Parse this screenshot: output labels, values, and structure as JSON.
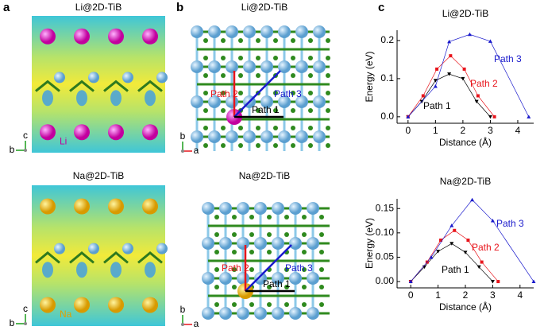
{
  "panel_labels": [
    "a",
    "b",
    "c"
  ],
  "structures": [
    {
      "title": "Li@2D-TiB",
      "ion": "Li"
    },
    {
      "title": "Na@2D-TiB",
      "ion": "Na"
    }
  ],
  "triad_side": [
    "c",
    "b"
  ],
  "triad_top": [
    "b",
    "a"
  ],
  "diffusion_paths": [
    "Path 1",
    "Path 2",
    "Path 3"
  ],
  "chart_data": [
    {
      "type": "line",
      "title": "Li@2D-TiB",
      "xlabel": "Distance (Å)",
      "ylabel": "Energy (eV)",
      "xlim": [
        -0.4,
        4.58
      ],
      "xticks": [
        0,
        1,
        2,
        3,
        4
      ],
      "ylim": [
        -0.017,
        0.227
      ],
      "yticks": [
        {
          "value": 0,
          "label": "0.0"
        },
        0.1,
        0.2
      ],
      "series": [
        {
          "name": "Path 1",
          "color": "#000000",
          "marker": "v",
          "x": [
            0,
            0.5,
            1.0,
            1.5,
            2.0,
            2.5,
            3.0
          ],
          "values": [
            0,
            0.04,
            0.095,
            0.112,
            0.1,
            0.04,
            0
          ]
        },
        {
          "name": "Path 2",
          "color": "#e8141b",
          "marker": "s",
          "x": [
            0,
            0.55,
            1.05,
            1.55,
            2.05,
            2.55,
            3.15
          ],
          "values": [
            0,
            0.055,
            0.125,
            0.16,
            0.125,
            0.055,
            0
          ]
        },
        {
          "name": "Path 3",
          "color": "#1a1acc",
          "marker": "^",
          "x": [
            0,
            1.0,
            1.5,
            2.25,
            3.0,
            4.4
          ],
          "values": [
            0,
            0.08,
            0.197,
            0.216,
            0.198,
            0
          ]
        }
      ]
    },
    {
      "type": "line",
      "title": "Na@2D-TiB",
      "xlabel": "Distance (Å)",
      "ylabel": "Energy (eV)",
      "xlim": [
        -0.5,
        4.5
      ],
      "xticks": [
        0,
        1,
        2,
        3,
        4
      ],
      "ylim": [
        -0.013,
        0.17
      ],
      "yticks": [
        {
          "value": 0,
          "label": "0.00"
        },
        0.05,
        {
          "value": 0.1,
          "label": "0.10"
        },
        0.15
      ],
      "series": [
        {
          "name": "Path 1",
          "color": "#000000",
          "marker": "v",
          "x": [
            0,
            0.5,
            1.0,
            1.5,
            2.0,
            2.5,
            3.0
          ],
          "values": [
            0,
            0.03,
            0.062,
            0.078,
            0.06,
            0.03,
            0
          ]
        },
        {
          "name": "Path 2",
          "color": "#e8141b",
          "marker": "s",
          "x": [
            0,
            0.6,
            1.1,
            1.6,
            2.1,
            2.6,
            3.2
          ],
          "values": [
            0,
            0.04,
            0.085,
            0.105,
            0.085,
            0.04,
            0
          ]
        },
        {
          "name": "Path 3",
          "color": "#1a1acc",
          "marker": "^",
          "x": [
            0,
            0.75,
            1.5,
            2.25,
            3.0,
            4.5
          ],
          "values": [
            0,
            0.05,
            0.115,
            0.168,
            0.125,
            0
          ]
        }
      ]
    }
  ]
}
